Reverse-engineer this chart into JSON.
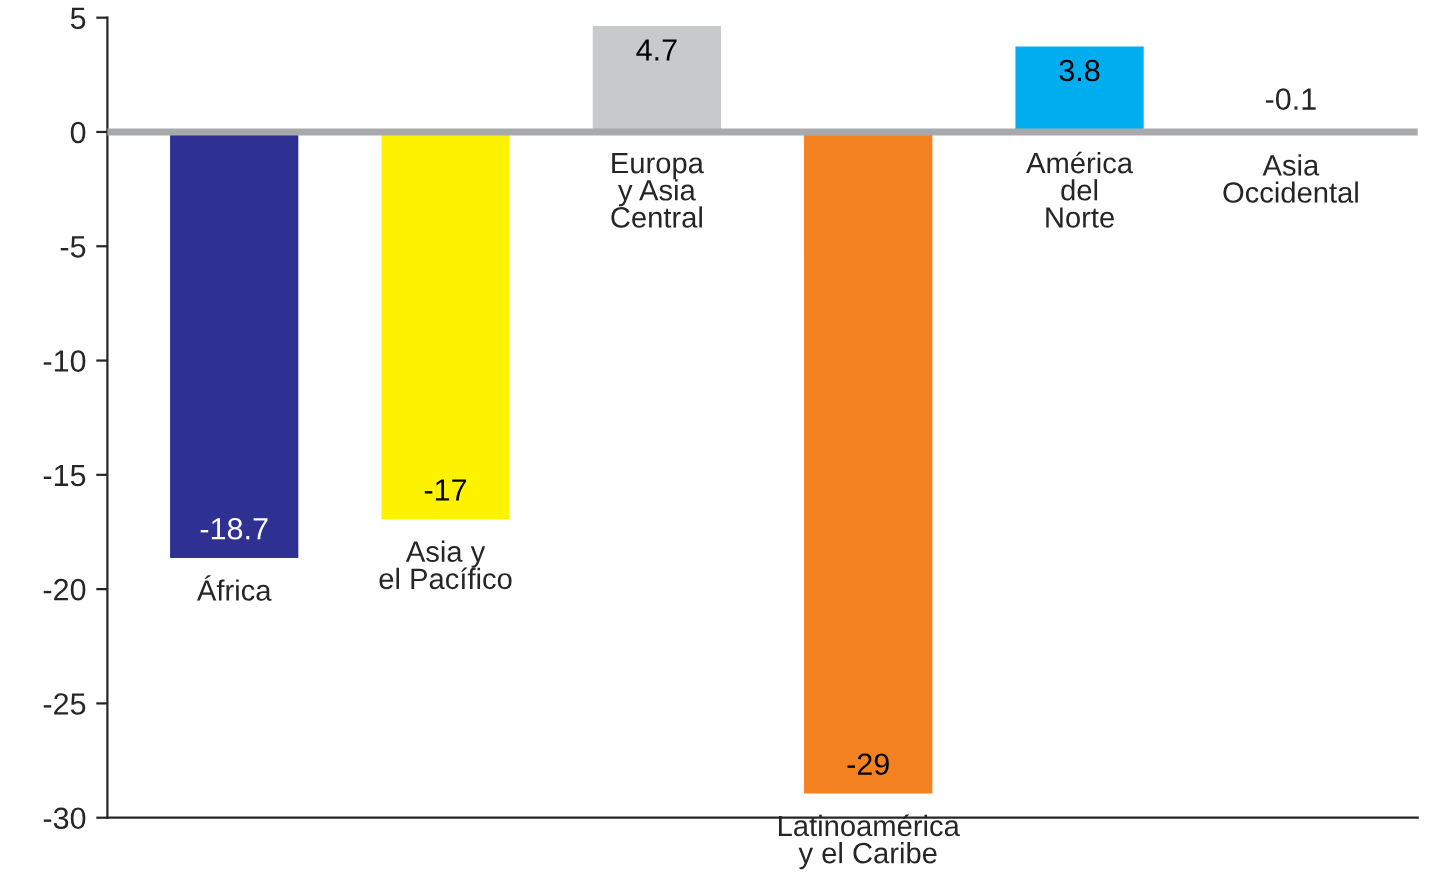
{
  "chart_data": {
    "type": "bar",
    "categories": [
      "África",
      "Asia y\nel Pacífico",
      "Europa\ny Asia\nCentral",
      "Latinoamérica\ny el Caribe",
      "América\ndel\nNorte",
      "Asia\nOccidental"
    ],
    "values": [
      -18.7,
      -17,
      4.7,
      -29,
      3.8,
      -0.1
    ],
    "colors": [
      "#2e3192",
      "#fff200",
      "#c8c9cb",
      "#f58220",
      "#00aeef",
      "#fff200"
    ],
    "ylim": [
      -30,
      5
    ],
    "yticks": [
      -30,
      -25,
      -20,
      -15,
      -10,
      -5,
      0,
      5
    ],
    "data_labels": true,
    "grid": false
  }
}
